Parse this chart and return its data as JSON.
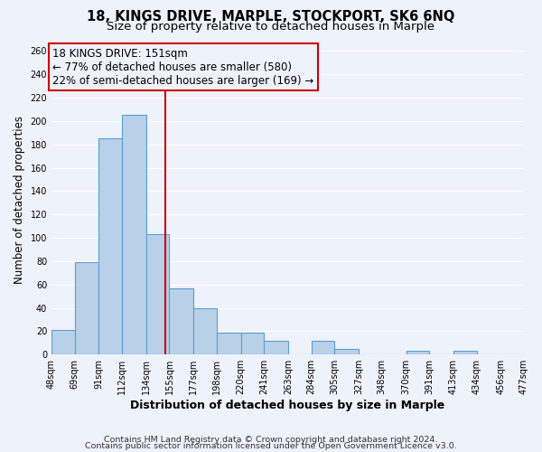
{
  "title": "18, KINGS DRIVE, MARPLE, STOCKPORT, SK6 6NQ",
  "subtitle": "Size of property relative to detached houses in Marple",
  "xlabel": "Distribution of detached houses by size in Marple",
  "ylabel": "Number of detached properties",
  "bar_edges": [
    48,
    69,
    91,
    112,
    134,
    155,
    177,
    198,
    220,
    241,
    263,
    284,
    305,
    327,
    348,
    370,
    391,
    413,
    434,
    456,
    477
  ],
  "bar_heights": [
    21,
    79,
    185,
    205,
    103,
    57,
    40,
    19,
    19,
    12,
    0,
    12,
    5,
    0,
    0,
    3,
    0,
    3,
    0,
    0
  ],
  "bar_color": "#b8d0e8",
  "bar_edge_color": "#5a9fd4",
  "vline_x": 151,
  "vline_color": "#cc0000",
  "annotation_title": "18 KINGS DRIVE: 151sqm",
  "annotation_line1": "← 77% of detached houses are smaller (580)",
  "annotation_line2": "22% of semi-detached houses are larger (169) →",
  "annotation_box_color": "#cc0000",
  "ylim": [
    0,
    265
  ],
  "yticks": [
    0,
    20,
    40,
    60,
    80,
    100,
    120,
    140,
    160,
    180,
    200,
    220,
    240,
    260
  ],
  "xtick_labels": [
    "48sqm",
    "69sqm",
    "91sqm",
    "112sqm",
    "134sqm",
    "155sqm",
    "177sqm",
    "198sqm",
    "220sqm",
    "241sqm",
    "263sqm",
    "284sqm",
    "305sqm",
    "327sqm",
    "348sqm",
    "370sqm",
    "391sqm",
    "413sqm",
    "434sqm",
    "456sqm",
    "477sqm"
  ],
  "footer1": "Contains HM Land Registry data © Crown copyright and database right 2024.",
  "footer2": "Contains public sector information licensed under the Open Government Licence v3.0.",
  "background_color": "#eef2fa",
  "grid_color": "#ffffff",
  "title_fontsize": 10.5,
  "subtitle_fontsize": 9.5,
  "xlabel_fontsize": 9,
  "ylabel_fontsize": 8.5,
  "tick_fontsize": 7,
  "footer_fontsize": 6.8,
  "annot_fontsize": 8.5
}
